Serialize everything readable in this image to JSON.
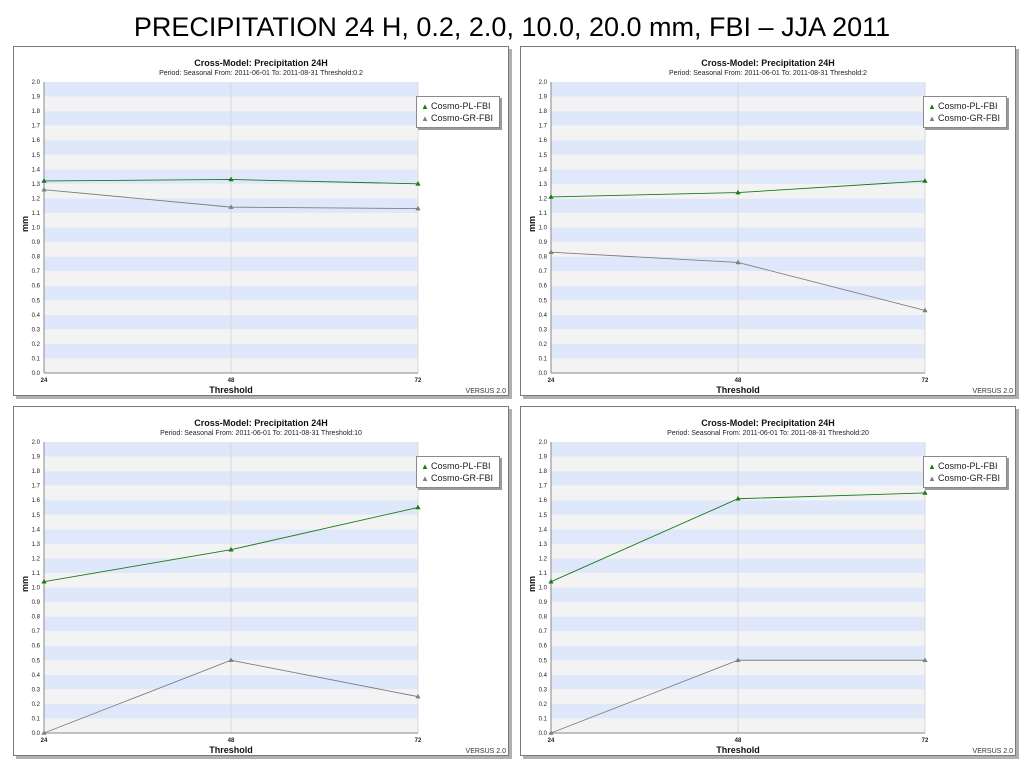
{
  "slide": {
    "title": "PRECIPITATION 24 H, 0.2, 2.0, 10.0, 20.0 mm, FBI – JJA 2011"
  },
  "colors": {
    "pl": "#1a7a1a",
    "gr": "#7f7f7f",
    "band_blue": "#dfe8fb",
    "band_grey": "#f3f3f3"
  },
  "chart_data": [
    {
      "type": "line",
      "title": "Cross-Model: Precipitation 24H",
      "subtitle": "Period: Seasonal From: 2011-06-01  To: 2011-08-31 Threshold:0.2",
      "xlabel": "Threshold",
      "ylabel": "mm",
      "footer": "VERSUS 2.0",
      "x": [
        24,
        48,
        72
      ],
      "x_tick_labels": [
        "24",
        "48",
        "72"
      ],
      "ylim": [
        0,
        2
      ],
      "y_ticks": [
        "0.0",
        "0.1",
        "0.2",
        "0.3",
        "0.4",
        "0.5",
        "0.6",
        "0.7",
        "0.8",
        "0.9",
        "1.0",
        "1.1",
        "1.2",
        "1.3",
        "1.4",
        "1.5",
        "1.6",
        "1.7",
        "1.8",
        "1.9",
        "2.0"
      ],
      "legend_position": "top-right",
      "series": [
        {
          "name": "Cosmo-PL-FBI",
          "values": [
            1.32,
            1.33,
            1.3
          ],
          "color": "#1a7a1a"
        },
        {
          "name": "Cosmo-GR-FBI",
          "values": [
            1.26,
            1.14,
            1.13
          ],
          "color": "#7f7f7f"
        }
      ]
    },
    {
      "type": "line",
      "title": "Cross-Model: Precipitation 24H",
      "subtitle": "Period: Seasonal From: 2011-06-01  To: 2011-08-31 Threshold:2",
      "xlabel": "Threshold",
      "ylabel": "mm",
      "footer": "VERSUS 2.0",
      "x": [
        24,
        48,
        72
      ],
      "x_tick_labels": [
        "24",
        "48",
        "72"
      ],
      "ylim": [
        0,
        2
      ],
      "y_ticks": [
        "0.0",
        "0.1",
        "0.2",
        "0.3",
        "0.4",
        "0.5",
        "0.6",
        "0.7",
        "0.8",
        "0.9",
        "1.0",
        "1.1",
        "1.2",
        "1.3",
        "1.4",
        "1.5",
        "1.6",
        "1.7",
        "1.8",
        "1.9",
        "2.0"
      ],
      "legend_position": "top-right",
      "series": [
        {
          "name": "Cosmo-PL-FBI",
          "values": [
            1.21,
            1.24,
            1.32
          ],
          "color": "#1a7a1a"
        },
        {
          "name": "Cosmo-GR-FBI",
          "values": [
            0.83,
            0.76,
            0.43
          ],
          "color": "#7f7f7f"
        }
      ]
    },
    {
      "type": "line",
      "title": "Cross-Model: Precipitation 24H",
      "subtitle": "Period: Seasonal From: 2011-06-01  To: 2011-08-31 Threshold:10",
      "xlabel": "Threshold",
      "ylabel": "mm",
      "footer": "VERSUS 2.0",
      "x": [
        24,
        48,
        72
      ],
      "x_tick_labels": [
        "24",
        "48",
        "72"
      ],
      "ylim": [
        0,
        2
      ],
      "y_ticks": [
        "0.0",
        "0.1",
        "0.2",
        "0.3",
        "0.4",
        "0.5",
        "0.6",
        "0.7",
        "0.8",
        "0.9",
        "1.0",
        "1.1",
        "1.2",
        "1.3",
        "1.4",
        "1.5",
        "1.6",
        "1.7",
        "1.8",
        "1.9",
        "2.0"
      ],
      "legend_position": "top-right",
      "series": [
        {
          "name": "Cosmo-PL-FBI",
          "values": [
            1.04,
            1.26,
            1.55
          ],
          "color": "#1a7a1a"
        },
        {
          "name": "Cosmo-GR-FBI",
          "values": [
            0.0,
            0.5,
            0.25
          ],
          "color": "#7f7f7f"
        }
      ]
    },
    {
      "type": "line",
      "title": "Cross-Model: Precipitation 24H",
      "subtitle": "Period: Seasonal From: 2011-06-01  To: 2011-08-31 Threshold:20",
      "xlabel": "Threshold",
      "ylabel": "mm",
      "footer": "VERSUS 2.0",
      "x": [
        24,
        48,
        72
      ],
      "x_tick_labels": [
        "24",
        "48",
        "72"
      ],
      "ylim": [
        0,
        2
      ],
      "y_ticks": [
        "0.0",
        "0.1",
        "0.2",
        "0.3",
        "0.4",
        "0.5",
        "0.6",
        "0.7",
        "0.8",
        "0.9",
        "1.0",
        "1.1",
        "1.2",
        "1.3",
        "1.4",
        "1.5",
        "1.6",
        "1.7",
        "1.8",
        "1.9",
        "2.0"
      ],
      "legend_position": "top-right",
      "series": [
        {
          "name": "Cosmo-PL-FBI",
          "values": [
            1.04,
            1.61,
            1.65
          ],
          "color": "#1a7a1a"
        },
        {
          "name": "Cosmo-GR-FBI",
          "values": [
            0.0,
            0.5,
            0.5
          ],
          "color": "#7f7f7f"
        }
      ]
    }
  ]
}
